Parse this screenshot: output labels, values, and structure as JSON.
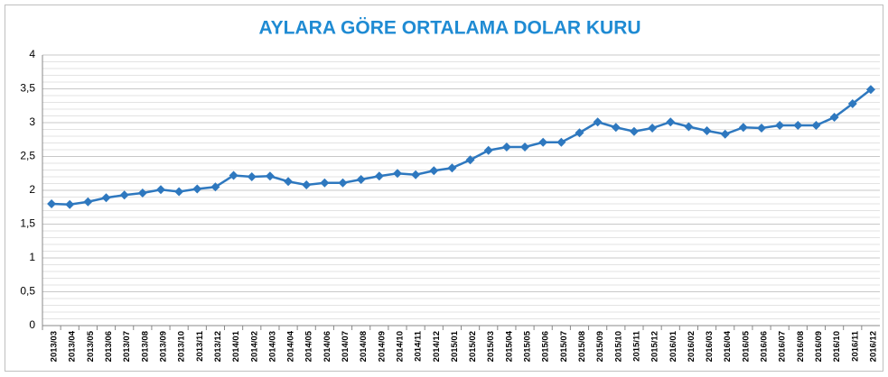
{
  "chart_data": {
    "type": "line",
    "title": "AYLARA GÖRE ORTALAMA DOLAR KURU",
    "categories": [
      "2013/03",
      "2013/04",
      "2013/05",
      "2013/06",
      "2013/07",
      "2013/08",
      "2013/09",
      "2013/10",
      "2013/11",
      "2013/12",
      "2014/01",
      "2014/02",
      "2014/03",
      "2014/04",
      "2014/05",
      "2014/06",
      "2014/07",
      "2014/08",
      "2014/09",
      "2014/10",
      "2014/11",
      "2014/12",
      "2015/01",
      "2015/02",
      "2015/03",
      "2015/04",
      "2015/05",
      "2015/06",
      "2015/07",
      "2015/08",
      "2015/09",
      "2015/10",
      "2015/11",
      "2015/12",
      "2016/01",
      "2016/02",
      "2016/03",
      "2016/04",
      "2016/05",
      "2016/06",
      "2016/07",
      "2016/08",
      "2016/09",
      "2016/10",
      "2016/11",
      "2016/12"
    ],
    "values": [
      1.8,
      1.79,
      1.83,
      1.89,
      1.93,
      1.96,
      2.01,
      1.98,
      2.02,
      2.05,
      2.22,
      2.2,
      2.21,
      2.13,
      2.08,
      2.11,
      2.11,
      2.16,
      2.21,
      2.25,
      2.23,
      2.29,
      2.33,
      2.45,
      2.59,
      2.64,
      2.64,
      2.71,
      2.71,
      2.85,
      3.01,
      2.93,
      2.87,
      2.92,
      3.01,
      2.94,
      2.88,
      2.83,
      2.93,
      2.92,
      2.96,
      2.96,
      2.96,
      3.08,
      3.28,
      3.49
    ],
    "color": "#2e78bf",
    "ylim": [
      0,
      4
    ],
    "yticks": [
      0,
      {
        "value": 0.5,
        "label": "0,5"
      },
      1,
      {
        "value": 1.5,
        "label": "1,5"
      },
      2,
      {
        "value": 2.5,
        "label": "2,5"
      },
      3,
      {
        "value": 3.5,
        "label": "3,5"
      },
      4
    ],
    "grid": true
  }
}
